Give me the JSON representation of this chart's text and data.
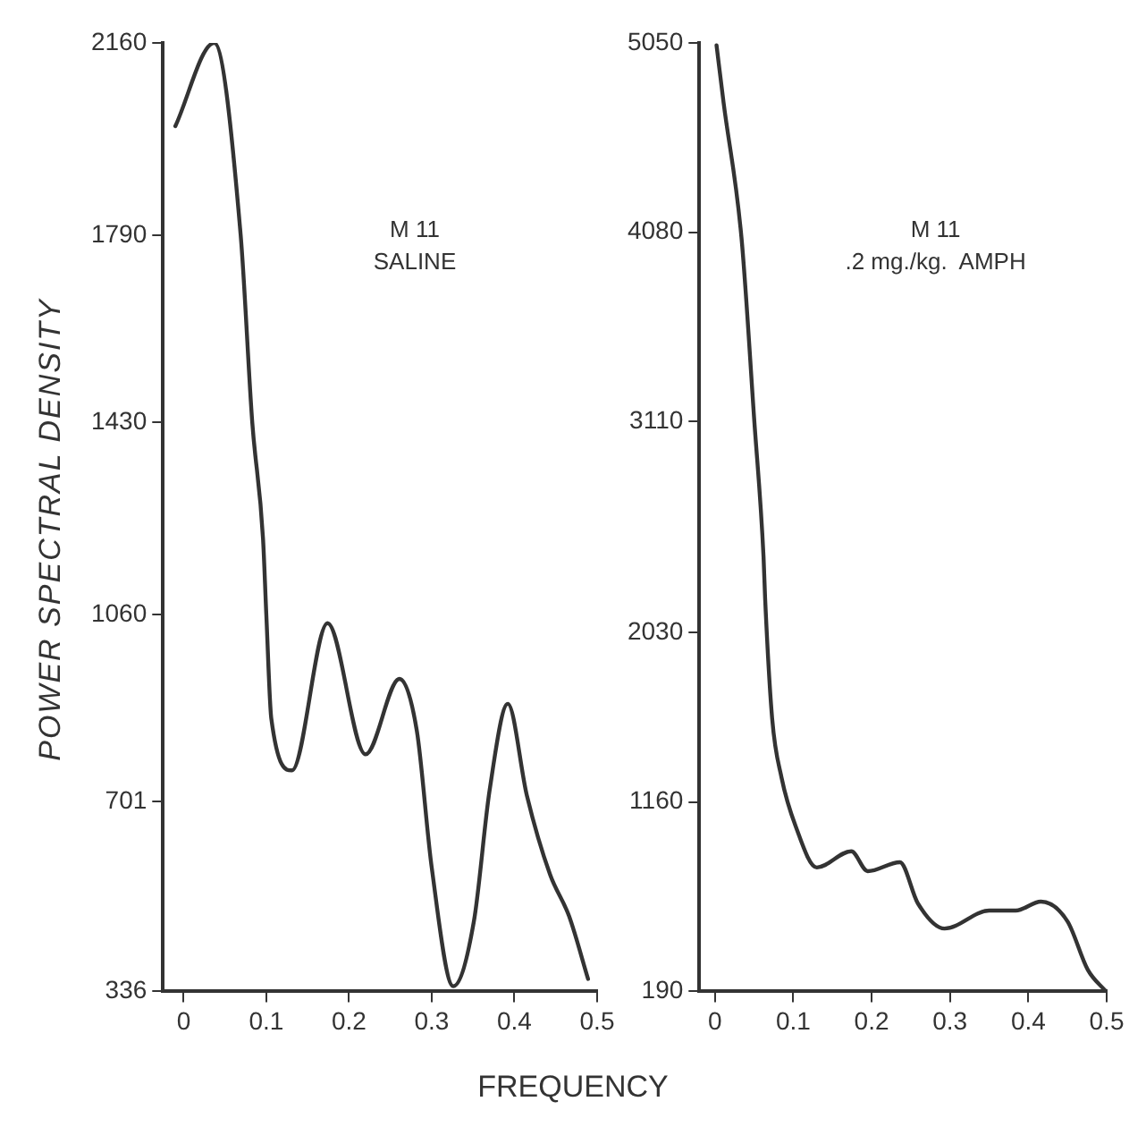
{
  "chart_data": [
    {
      "type": "line",
      "ylabel": "POWER SPECTRAL DENSITY",
      "xlabel": "FREQUENCY",
      "annotations": [
        "M 11",
        "SALINE"
      ],
      "xlim": [
        -0.025,
        0.5
      ],
      "xticks": [
        {
          "value": 0,
          "label": "0"
        },
        {
          "value": 0.1,
          "label": "0.1"
        },
        {
          "value": 0.2,
          "label": "0.2"
        },
        {
          "value": 0.3,
          "label": "0.3"
        },
        {
          "value": 0.4,
          "label": "0.4"
        },
        {
          "value": 0.5,
          "label": "0.5"
        }
      ],
      "ylim": [
        336,
        2160
      ],
      "yticks": [
        336,
        701,
        1060,
        1430,
        1790,
        2160
      ],
      "grid": false,
      "series": [
        {
          "color": "#333333",
          "x": [
            -0.01,
            0.037,
            0.069,
            0.083,
            0.096,
            0.1,
            0.106,
            0.131,
            0.174,
            0.22,
            0.261,
            0.282,
            0.3,
            0.326,
            0.351,
            0.37,
            0.392,
            0.415,
            0.443,
            0.466,
            0.489
          ],
          "values": [
            2000,
            2160,
            1790,
            1430,
            1207,
            1060,
            861,
            761,
            1044,
            792,
            937,
            837,
            574,
            346,
            471,
            723,
            889,
            713,
            561,
            481,
            360
          ]
        }
      ]
    },
    {
      "type": "line",
      "annotations": [
        "M 11",
        ".2 mg./kg.  AMPH"
      ],
      "xlim": [
        -0.02,
        0.5
      ],
      "xticks": [
        {
          "value": 0,
          "label": "0"
        },
        {
          "value": 0.1,
          "label": "0.1"
        },
        {
          "value": 0.2,
          "label": "0.2"
        },
        {
          "value": 0.3,
          "label": "0.3"
        },
        {
          "value": 0.4,
          "label": "0.4"
        },
        {
          "value": 0.5,
          "label": "0.5"
        }
      ],
      "ylim": [
        190,
        5050
      ],
      "yticks": [
        190,
        1160,
        2030,
        3110,
        4080,
        5050
      ],
      "grid": false,
      "series": [
        {
          "color": "#333333",
          "x": [
            0.002,
            0.011,
            0.034,
            0.05,
            0.062,
            0.064,
            0.073,
            0.085,
            0.103,
            0.13,
            0.174,
            0.195,
            0.236,
            0.259,
            0.293,
            0.35,
            0.384,
            0.416,
            0.45,
            0.476,
            0.499
          ],
          "values": [
            5038,
            4744,
            4045,
            3125,
            2416,
            2205,
            1588,
            1285,
            1036,
            825,
            908,
            806,
            852,
            641,
            512,
            604,
            604,
            650,
            549,
            300,
            190
          ]
        }
      ]
    }
  ]
}
